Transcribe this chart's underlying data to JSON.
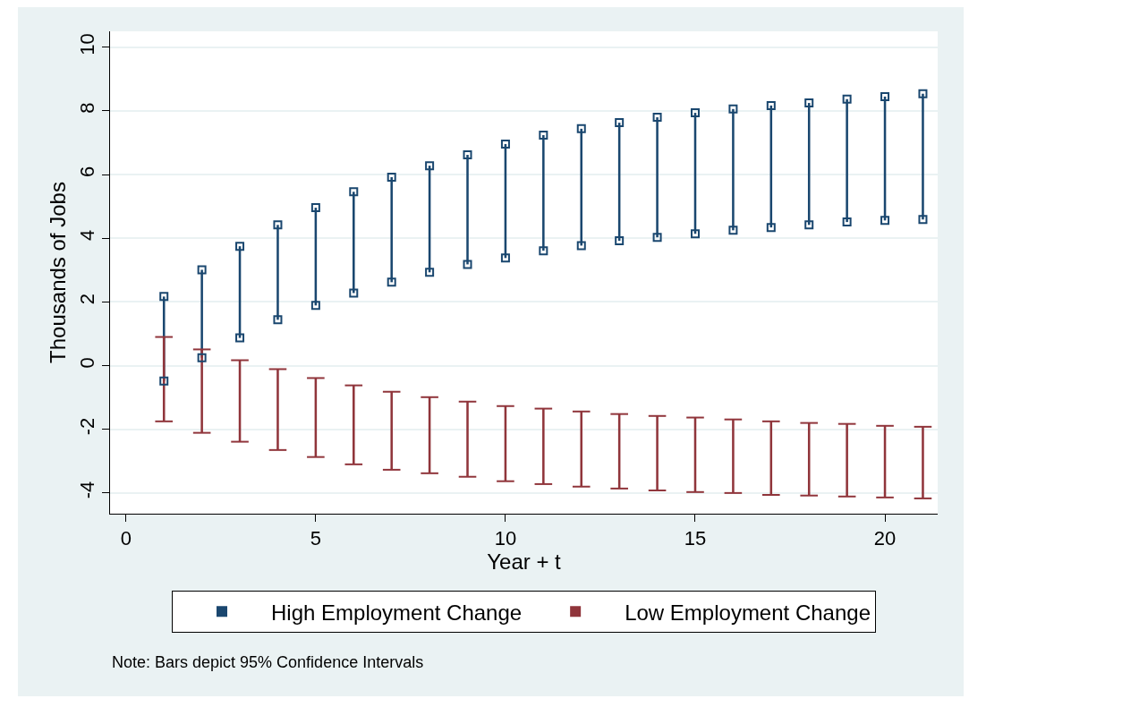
{
  "chart_data": {
    "type": "bar",
    "xlabel": "Year + t",
    "ylabel": "Thousands of Jobs",
    "x": [
      1,
      2,
      3,
      4,
      5,
      6,
      7,
      8,
      9,
      10,
      11,
      12,
      13,
      14,
      15,
      16,
      17,
      18,
      19,
      20,
      21
    ],
    "series": [
      {
        "name": "High Employment Change",
        "color": "#1a476f",
        "marker": "square",
        "base": [
          -0.48,
          0.25,
          0.87,
          1.44,
          1.89,
          2.28,
          2.62,
          2.93,
          3.18,
          3.38,
          3.61,
          3.77,
          3.92,
          4.03,
          4.14,
          4.25,
          4.34,
          4.42,
          4.51,
          4.56,
          4.59
        ],
        "values": [
          2.65,
          2.76,
          2.88,
          2.98,
          3.07,
          3.18,
          3.3,
          3.35,
          3.44,
          3.58,
          3.63,
          3.67,
          3.71,
          3.77,
          3.8,
          3.81,
          3.83,
          3.83,
          3.86,
          3.89,
          3.95
        ]
      },
      {
        "name": "Low Employment Change",
        "color": "#90353b",
        "marker": "none",
        "base": [
          -1.75,
          -2.11,
          -2.39,
          -2.65,
          -2.87,
          -3.1,
          -3.27,
          -3.38,
          -3.49,
          -3.63,
          -3.72,
          -3.8,
          -3.86,
          -3.92,
          -3.97,
          -4,
          -4.06,
          -4.08,
          -4.11,
          -4.14,
          -4.17
        ],
        "values": [
          2.65,
          2.62,
          2.56,
          2.54,
          2.48,
          2.48,
          2.45,
          2.39,
          2.36,
          2.36,
          2.37,
          2.36,
          2.34,
          2.34,
          2.34,
          2.31,
          2.31,
          2.28,
          2.28,
          2.25,
          2.25
        ]
      }
    ],
    "xlim": [
      -0.42,
      21.39
    ],
    "ylim": [
      -4.65,
      10.5
    ],
    "xticks": [
      0,
      5,
      10,
      15,
      20
    ],
    "yticks": [
      -4,
      -2,
      0,
      2,
      4,
      6,
      8,
      10
    ],
    "grid": "y",
    "legend": "bottom",
    "annotations": [
      "Note: Bars depict 95% Confidence Intervals"
    ]
  }
}
